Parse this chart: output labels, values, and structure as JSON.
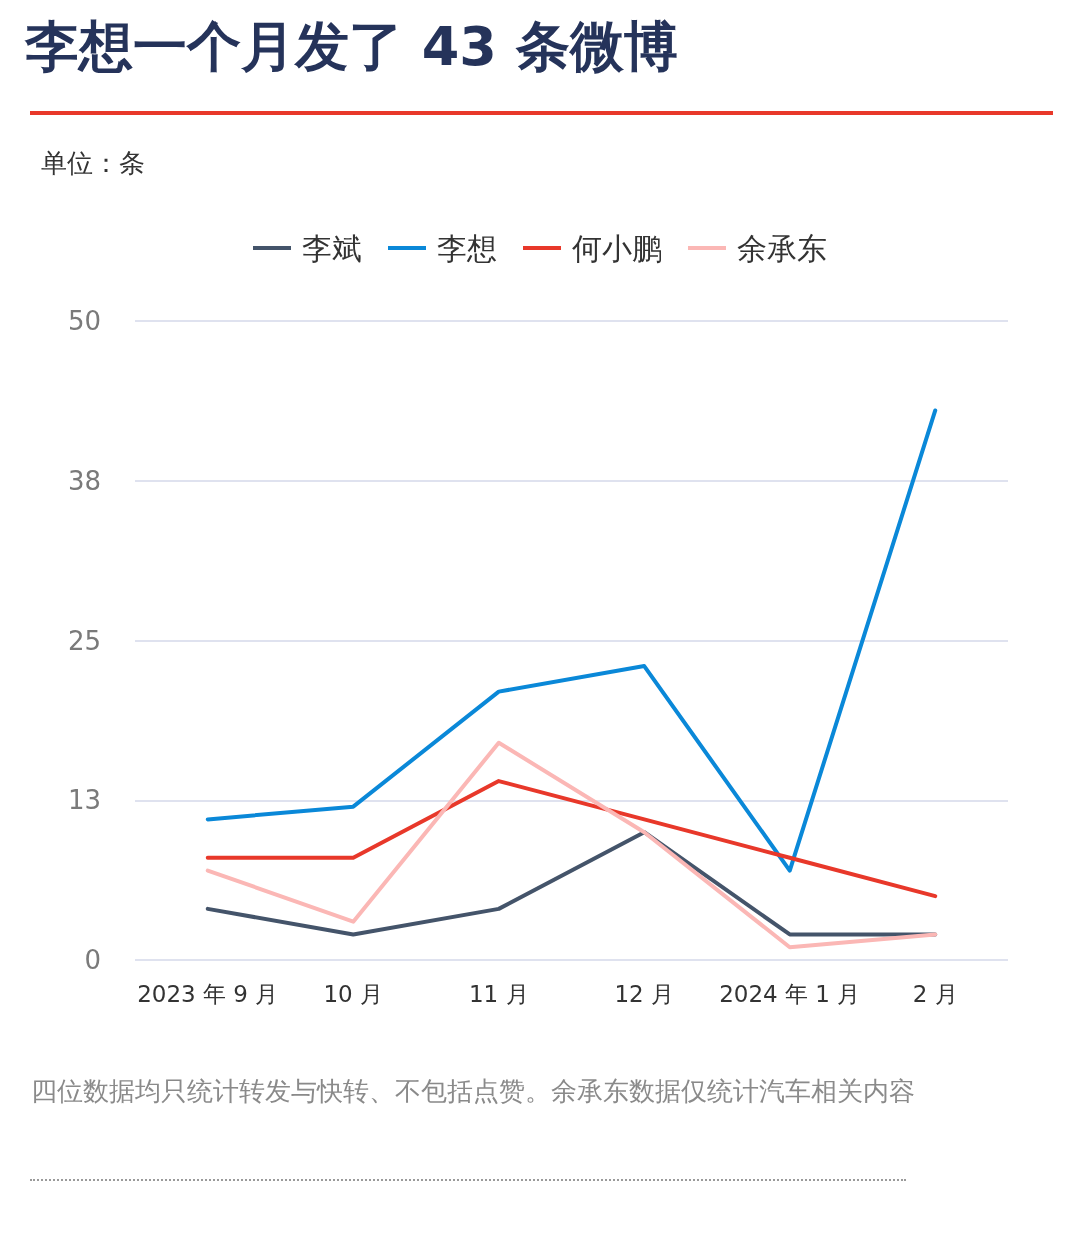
{
  "chart_data": {
    "type": "line",
    "title": "李想一个月发了 43 条微博",
    "ylabel": "单位：条",
    "categories": [
      "2023 年 9 月",
      "10 月",
      "11 月",
      "12 月",
      "2024 年 1 月",
      "2 月"
    ],
    "series": [
      {
        "name": "李斌",
        "color": "#44546a",
        "values": [
          4,
          2,
          4,
          10,
          2,
          2
        ]
      },
      {
        "name": "李想",
        "color": "#0a88d8",
        "values": [
          11,
          12,
          21,
          23,
          7,
          43
        ]
      },
      {
        "name": "何小鹏",
        "color": "#e8382a",
        "values": [
          8,
          8,
          14,
          11,
          8,
          5
        ]
      },
      {
        "name": "余承东",
        "color": "#fbb7b5",
        "values": [
          7,
          3,
          17,
          10,
          1,
          2
        ]
      }
    ],
    "ylim": [
      0,
      50
    ],
    "yticks": [
      0,
      {
        "value": 12.5,
        "label": "13"
      },
      25,
      {
        "value": 37.5,
        "label": "38"
      },
      50
    ],
    "grid": "y",
    "legend": "top",
    "marker": "none",
    "line_style": "solid",
    "annotations": [
      "四位数据均只统计转发与快转、不包括点赞。余承东数据仅统计汽车相关内容"
    ]
  }
}
